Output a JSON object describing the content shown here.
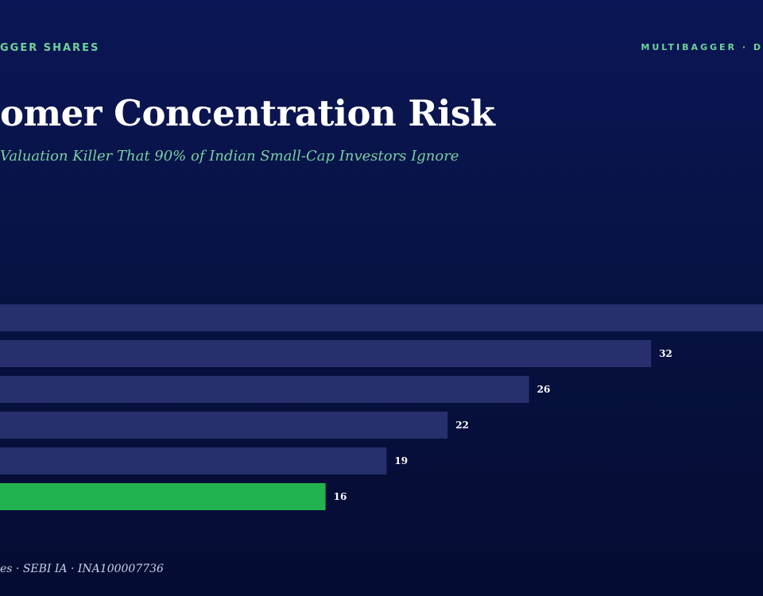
{
  "header": {
    "kicker_left": "GGER SHARES",
    "kicker_right": "MULTIBAGGER · D",
    "title": "omer Concentration Risk",
    "subtitle": "Valuation Killer That 90% of Indian Small-Cap Investors Ignore"
  },
  "footer": {
    "text": "es · SEBI IA · INA100007736"
  },
  "colors": {
    "bar": "#27306d",
    "highlight": "#22b24f",
    "label": "#ffffff"
  },
  "chart_data": {
    "type": "bar",
    "orientation": "horizontal",
    "categories": [
      "",
      "",
      "",
      "",
      "",
      ""
    ],
    "values": [
      null,
      32,
      26,
      22,
      19,
      16
    ],
    "value_labels": [
      "",
      "32",
      "26",
      "22",
      "19",
      "16"
    ],
    "highlight_index": 5,
    "title": "",
    "xlabel": "",
    "ylabel": "",
    "xlim": [
      0,
      37.5
    ],
    "grid": false
  }
}
